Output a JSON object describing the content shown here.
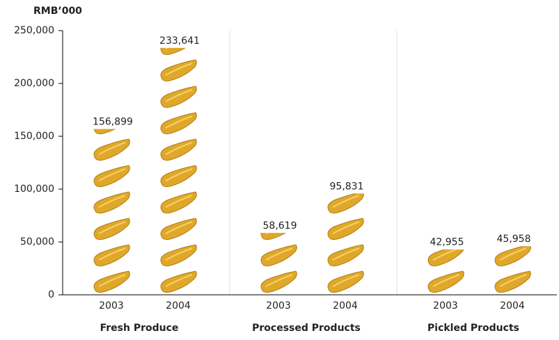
{
  "chart_data": {
    "type": "pictograph",
    "y_label": "RMB’000",
    "groups": [
      "Fresh Produce",
      "Processed Products",
      "Pickled Products"
    ],
    "categories": [
      "2003",
      "2004"
    ],
    "values": [
      [
        156899,
        233641
      ],
      [
        58619,
        95831
      ],
      [
        42955,
        45958
      ]
    ],
    "value_labels": [
      [
        "156,899",
        "233,641"
      ],
      [
        "58,619",
        "95,831"
      ],
      [
        "42,955",
        "45,958"
      ]
    ],
    "color": "#e0a82a",
    "ylim": [
      0,
      250000
    ],
    "yticks": [
      0,
      {
        "value": 50000,
        "label": "50,000"
      },
      {
        "value": 100000,
        "label": "100,000"
      },
      {
        "value": 150000,
        "label": "150,000"
      },
      {
        "value": 200000,
        "label": "200,000"
      },
      {
        "value": 250000,
        "label": "250,000"
      }
    ]
  }
}
